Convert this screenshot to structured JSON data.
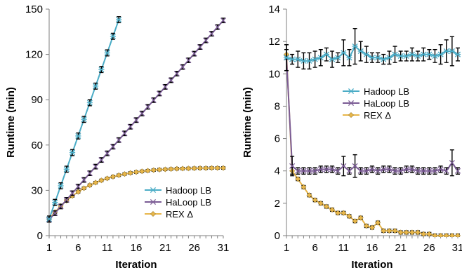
{
  "chart_data": [
    {
      "type": "line",
      "xlabel": "Iteration",
      "ylabel": "Runtime (min)",
      "xlim": [
        1,
        31
      ],
      "ylim": [
        0,
        150
      ],
      "xticks": [
        1,
        6,
        11,
        16,
        21,
        26,
        31
      ],
      "yticks": [
        0,
        30,
        60,
        90,
        120,
        150
      ],
      "grid": false,
      "legend_position": "bottom-right",
      "error_bars": true,
      "series": [
        {
          "name": "Hadoop LB",
          "color": "#4bacc6",
          "marker": "star",
          "x": [
            1,
            2,
            3,
            4,
            5,
            6,
            7,
            8,
            9,
            10,
            11,
            12,
            13
          ],
          "y": [
            11,
            22,
            33,
            44,
            55,
            66,
            77,
            88,
            99,
            110,
            121,
            132,
            143
          ],
          "err": [
            2,
            2,
            2,
            2,
            2,
            2,
            2,
            2,
            2,
            2,
            2,
            2,
            2
          ]
        },
        {
          "name": "HaLoop LB",
          "color": "#7a5b94",
          "marker": "x",
          "x": [
            1,
            2,
            3,
            4,
            5,
            6,
            7,
            8,
            9,
            10,
            11,
            12,
            13,
            14,
            15,
            16,
            17,
            18,
            19,
            20,
            21,
            22,
            23,
            24,
            25,
            26,
            27,
            28,
            29,
            30,
            31
          ],
          "y": [
            10.5,
            14.9,
            19.3,
            23.7,
            28.1,
            32.5,
            36.9,
            41.3,
            45.7,
            50.1,
            54.5,
            58.9,
            63.3,
            67.7,
            72.1,
            76.5,
            80.9,
            85.3,
            89.7,
            94.1,
            98.5,
            102.9,
            107.3,
            111.7,
            116.1,
            120.5,
            124.9,
            129.3,
            133.7,
            138.1,
            142.5
          ],
          "err": [
            1.5,
            1.5,
            1.5,
            1.5,
            1.5,
            1.5,
            1.5,
            1.5,
            1.5,
            1.5,
            1.5,
            1.5,
            1.5,
            1.5,
            1.5,
            1.5,
            1.5,
            1.5,
            1.5,
            1.5,
            1.5,
            1.5,
            1.5,
            1.5,
            1.5,
            1.5,
            1.5,
            1.5,
            1.5,
            1.5,
            1.5
          ]
        },
        {
          "name": "REX Δ",
          "color": "#e8b64a",
          "marker": "diamond",
          "x": [
            1,
            2,
            3,
            4,
            5,
            6,
            7,
            8,
            9,
            10,
            11,
            12,
            13,
            14,
            15,
            16,
            17,
            18,
            19,
            20,
            21,
            22,
            23,
            24,
            25,
            26,
            27,
            28,
            29,
            30,
            31
          ],
          "y": [
            11,
            15.6,
            19.6,
            23.2,
            26.3,
            29.0,
            31.4,
            33.4,
            35.1,
            36.6,
            37.9,
            39.0,
            40.0,
            40.8,
            41.5,
            42.1,
            42.6,
            43.0,
            43.4,
            43.7,
            43.9,
            44.1,
            44.3,
            44.4,
            44.5,
            44.6,
            44.7,
            44.7,
            44.8,
            44.8,
            44.8
          ],
          "err": [
            0.8,
            0.8,
            0.8,
            0.8,
            0.8,
            0.8,
            0.8,
            0.8,
            0.8,
            0.8,
            0.8,
            0.8,
            0.8,
            0.8,
            0.8,
            0.8,
            0.8,
            0.8,
            0.8,
            0.8,
            0.8,
            0.8,
            0.8,
            0.8,
            0.8,
            0.8,
            0.8,
            0.8,
            0.8,
            0.8,
            0.8
          ]
        }
      ]
    },
    {
      "type": "line",
      "xlabel": "Iteration",
      "ylabel": "Runtime (min)",
      "xlim": [
        1,
        31
      ],
      "ylim": [
        0,
        14
      ],
      "xticks": [
        1,
        6,
        11,
        16,
        21,
        26,
        31
      ],
      "yticks": [
        0,
        2,
        4,
        6,
        8,
        10,
        12,
        14
      ],
      "grid": false,
      "legend_position": "center",
      "error_bars": true,
      "series": [
        {
          "name": "Hadoop LB",
          "color": "#4bacc6",
          "marker": "star",
          "x": [
            1,
            2,
            3,
            4,
            5,
            6,
            7,
            8,
            9,
            10,
            11,
            12,
            13,
            14,
            15,
            16,
            17,
            18,
            19,
            20,
            21,
            22,
            23,
            24,
            25,
            26,
            27,
            28,
            29,
            30,
            31
          ],
          "y": [
            11.0,
            10.9,
            10.9,
            10.8,
            10.8,
            10.9,
            11.0,
            11.2,
            10.9,
            11.0,
            11.3,
            11.0,
            11.7,
            11.4,
            11.2,
            11.0,
            11.0,
            10.9,
            11.0,
            11.2,
            11.1,
            11.1,
            11.2,
            11.1,
            11.2,
            11.2,
            11.1,
            11.2,
            11.4,
            11.4,
            11.2
          ],
          "err": [
            0.8,
            0.3,
            0.5,
            0.5,
            0.5,
            0.5,
            0.5,
            0.4,
            0.5,
            0.3,
            0.8,
            0.5,
            1.1,
            0.6,
            0.5,
            0.3,
            0.3,
            0.3,
            0.4,
            0.5,
            0.3,
            0.3,
            0.4,
            0.3,
            0.4,
            0.3,
            0.4,
            0.6,
            0.7,
            0.9,
            0.4
          ]
        },
        {
          "name": "HaLoop LB",
          "color": "#7a5b94",
          "marker": "x",
          "x": [
            1,
            2,
            3,
            4,
            5,
            6,
            7,
            8,
            9,
            10,
            11,
            12,
            13,
            14,
            15,
            16,
            17,
            18,
            19,
            20,
            21,
            22,
            23,
            24,
            25,
            26,
            27,
            28,
            29,
            30,
            31
          ],
          "y": [
            11.0,
            4.3,
            4.0,
            4.0,
            4.0,
            4.0,
            4.1,
            4.1,
            4.1,
            4.0,
            4.3,
            4.0,
            4.3,
            4.0,
            4.0,
            4.1,
            4.0,
            4.1,
            4.1,
            4.0,
            4.0,
            4.1,
            4.1,
            4.0,
            4.0,
            4.0,
            4.0,
            4.1,
            4.0,
            4.5,
            4.0
          ],
          "err": [
            0.8,
            0.6,
            0.2,
            0.2,
            0.2,
            0.2,
            0.2,
            0.2,
            0.2,
            0.2,
            0.6,
            0.2,
            0.7,
            0.2,
            0.2,
            0.2,
            0.2,
            0.2,
            0.2,
            0.2,
            0.2,
            0.2,
            0.2,
            0.2,
            0.2,
            0.2,
            0.2,
            0.2,
            0.2,
            0.8,
            0.2
          ]
        },
        {
          "name": "REX Δ",
          "color": "#e8b64a",
          "marker": "diamond",
          "x": [
            1,
            2,
            3,
            4,
            5,
            6,
            7,
            8,
            9,
            10,
            11,
            12,
            13,
            14,
            15,
            16,
            17,
            18,
            19,
            20,
            21,
            22,
            23,
            24,
            25,
            26,
            27,
            28,
            29,
            30,
            31
          ],
          "y": [
            11.2,
            4.0,
            3.5,
            3.0,
            2.5,
            2.2,
            2.0,
            1.8,
            1.6,
            1.4,
            1.4,
            1.2,
            0.9,
            1.1,
            0.6,
            0.5,
            0.8,
            0.3,
            0.3,
            0.3,
            0.2,
            0.2,
            0.2,
            0.2,
            0.1,
            0.1,
            0.0,
            0.0,
            0.0,
            0.0,
            0.0
          ],
          "err": [
            0.3,
            0.2,
            0.1,
            0.1,
            0.1,
            0.1,
            0.1,
            0.1,
            0.1,
            0.1,
            0.1,
            0.1,
            0.1,
            0.1,
            0.1,
            0.1,
            0.1,
            0.1,
            0.1,
            0.1,
            0.1,
            0.1,
            0.1,
            0.1,
            0.1,
            0.1,
            0.1,
            0.1,
            0.1,
            0.1,
            0.1
          ]
        }
      ]
    }
  ]
}
